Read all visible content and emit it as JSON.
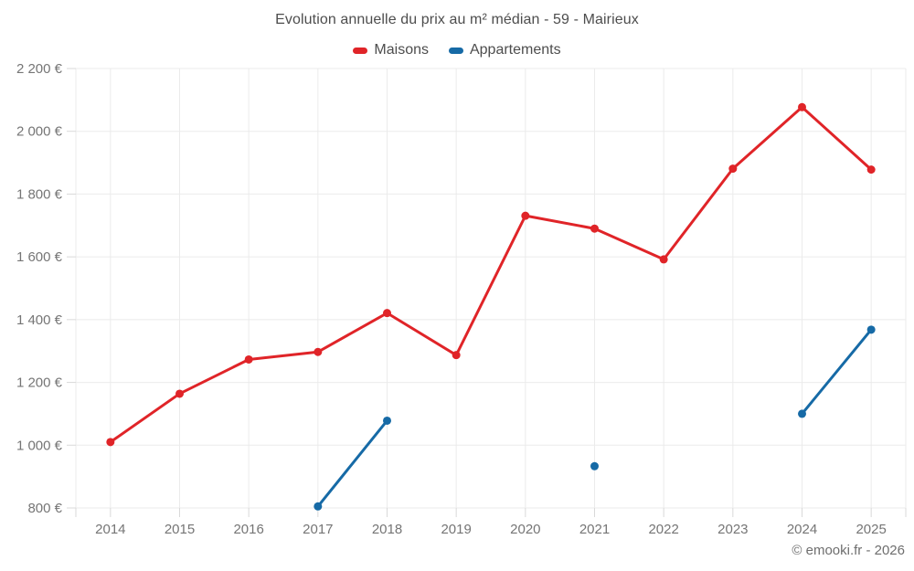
{
  "header": {
    "title": "Evolution annuelle du prix au m² médian - 59 - Mairieux"
  },
  "legend": {
    "items": [
      {
        "label": "Maisons",
        "color": "#e02428"
      },
      {
        "label": "Appartements",
        "color": "#166aa6"
      }
    ]
  },
  "footer": {
    "credit": "© emooki.fr - 2026"
  },
  "chart_data": {
    "type": "line",
    "title": "Evolution annuelle du prix au m² médian - 59 - Mairieux",
    "categories": [
      "2014",
      "2015",
      "2016",
      "2017",
      "2018",
      "2019",
      "2020",
      "2021",
      "2022",
      "2023",
      "2024",
      "2025"
    ],
    "series": [
      {
        "name": "Maisons",
        "color": "#e02428",
        "line_width": 3,
        "point_radius": 4.5,
        "values": [
          1010,
          1164,
          1273,
          1297,
          1421,
          1287,
          1731,
          1690,
          1592,
          1881,
          2077,
          1878
        ]
      },
      {
        "name": "Appartements",
        "color": "#166aa6",
        "line_width": 3,
        "point_radius": 4.5,
        "values": [
          null,
          null,
          null,
          805,
          1078,
          null,
          null,
          933,
          null,
          null,
          1100,
          1368
        ]
      }
    ],
    "xlabel": "",
    "ylabel": "",
    "ylim": [
      800,
      2200
    ],
    "ytick_step": 200,
    "ytick_suffix": " €",
    "grid": true,
    "legend_position": "top",
    "styles": {
      "grid_color": "#ebebeb",
      "tick_color": "#d9d9d9",
      "axis_text_color": "#757575",
      "tick_font_size": 15
    }
  }
}
